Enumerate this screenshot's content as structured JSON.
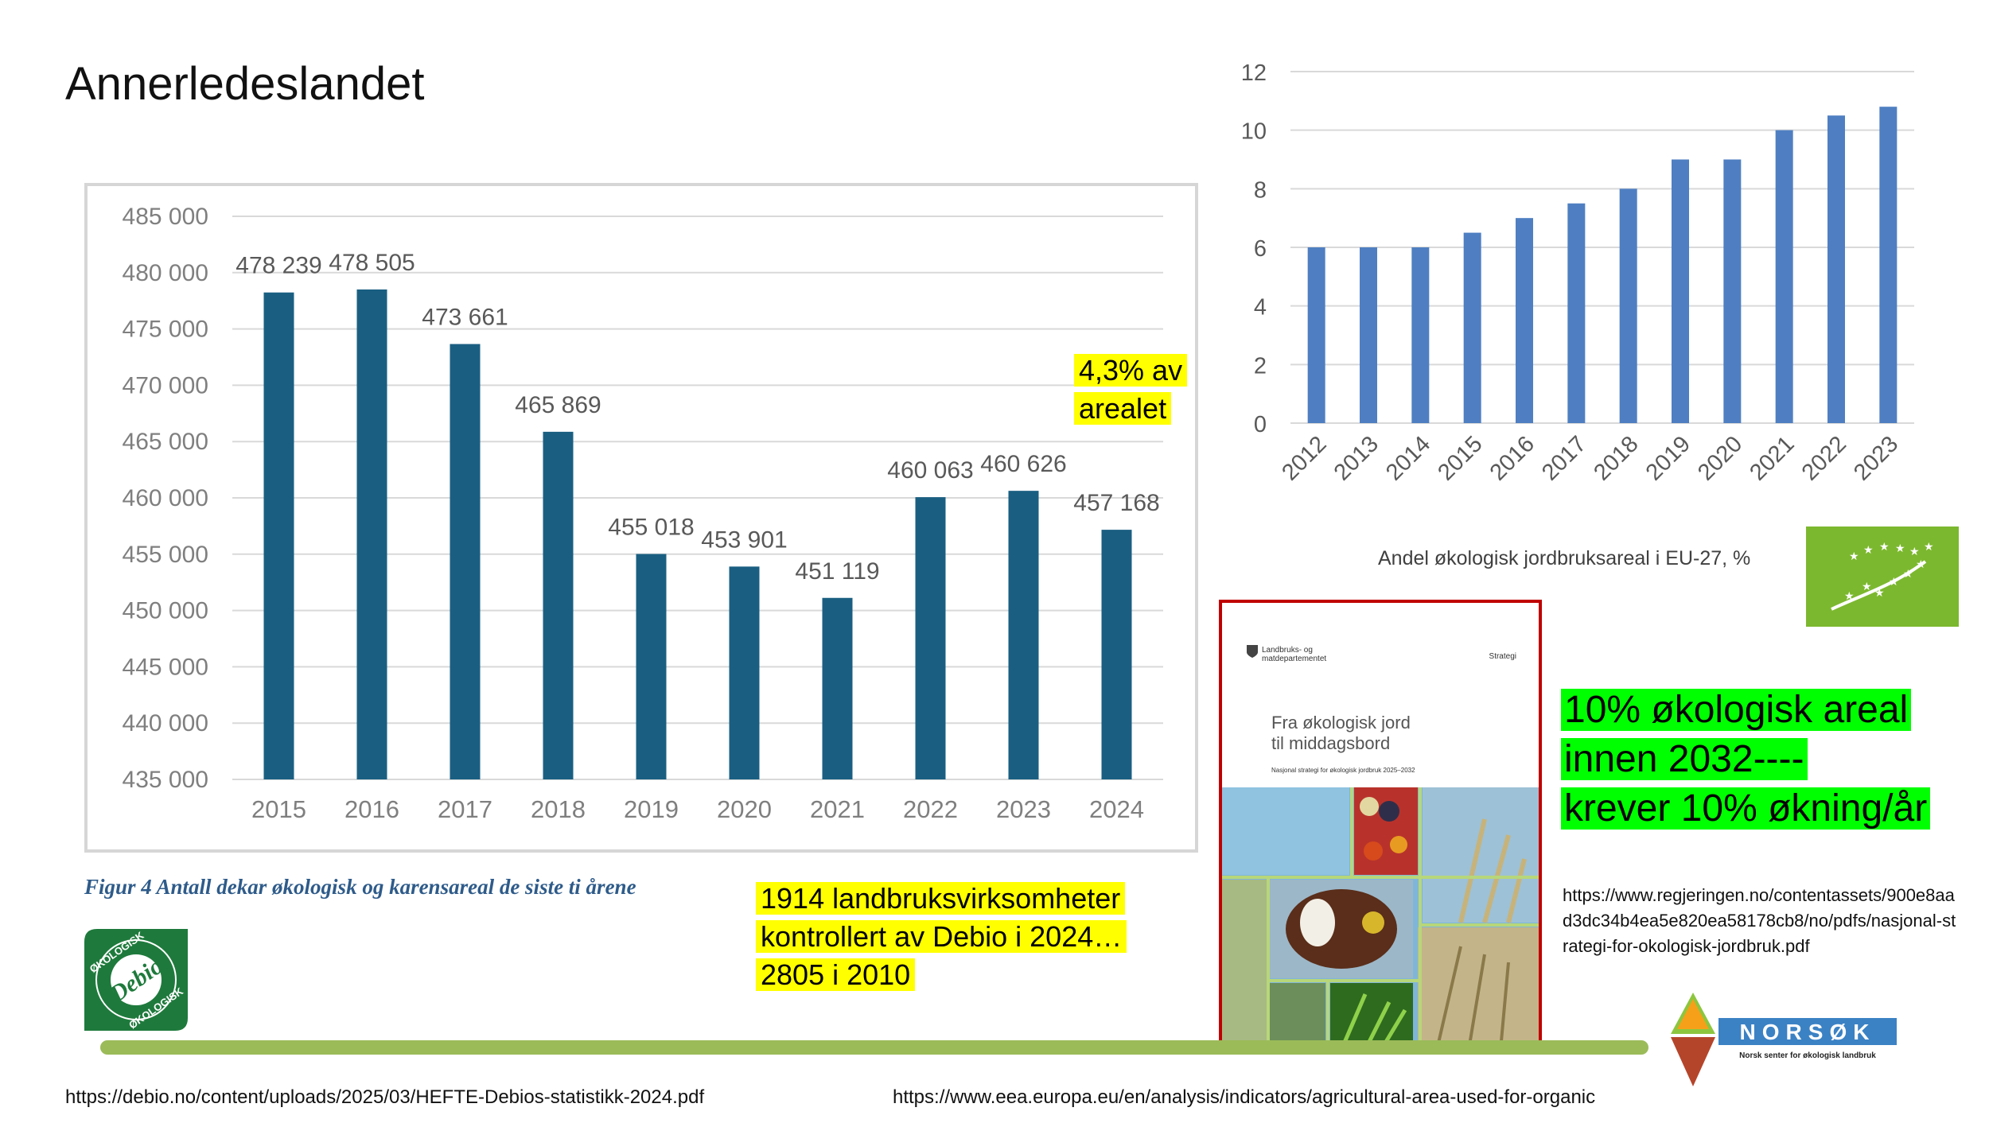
{
  "slide_title": "Annerledeslandet",
  "chart1": {
    "chart_data": {
      "type": "bar",
      "categories": [
        "2015",
        "2016",
        "2017",
        "2018",
        "2019",
        "2020",
        "2021",
        "2022",
        "2023",
        "2024"
      ],
      "values": [
        478239,
        478505,
        473661,
        465869,
        455018,
        453901,
        451119,
        460063,
        460626,
        457168
      ],
      "value_labels": [
        "478 239",
        "478 505",
        "473 661",
        "465 869",
        "455 018",
        "453 901",
        "451 119",
        "460 063",
        "460 626",
        "457 168"
      ],
      "ylim": [
        435000,
        485000
      ],
      "yticks": [
        435000,
        440000,
        445000,
        450000,
        455000,
        460000,
        465000,
        470000,
        475000,
        480000,
        485000
      ],
      "ytick_labels": [
        "435 000",
        "440 000",
        "445 000",
        "450 000",
        "455 000",
        "460 000",
        "465 000",
        "470 000",
        "475 000",
        "480 000",
        "485 000"
      ],
      "grid": true,
      "color": "#1a5f82"
    },
    "caption": "Figur 4 Antall dekar økologisk og karensareal de siste ti årene"
  },
  "chart2": {
    "chart_data": {
      "type": "bar",
      "categories": [
        "2012",
        "2013",
        "2014",
        "2015",
        "2016",
        "2017",
        "2018",
        "2019",
        "2020",
        "2021",
        "2022",
        "2023"
      ],
      "values": [
        6.0,
        6.0,
        6.0,
        6.5,
        7.0,
        7.5,
        8.0,
        9.0,
        9.0,
        10.0,
        10.5,
        10.8
      ],
      "ylim": [
        0,
        12
      ],
      "yticks": [
        0,
        2,
        4,
        6,
        8,
        10,
        12
      ],
      "ytick_labels": [
        "0",
        "2",
        "4",
        "6",
        "8",
        "10",
        "12"
      ],
      "grid": true,
      "color": "#4f7fc2",
      "title": "Andel økologisk jordbruksareal i EU-27, %"
    }
  },
  "notes": {
    "area_share": [
      "4,3% av",
      "arealet"
    ],
    "firms": [
      "1914 landbruksvirksomheter",
      "kontrollert av Debio i 2024…",
      "2805 i 2010"
    ],
    "goal": [
      "10% økologisk areal",
      "innen 2032----",
      "krever 10% økning/år"
    ]
  },
  "document": {
    "ministry": "Landbruks- og matdepartementet",
    "type": "Strategi",
    "title_line1": "Fra økologisk jord",
    "title_line2": "til middagsbord",
    "subtitle": "Nasjonal strategi for økologisk jordbruk 2025–2032",
    "url": "https://www.regjeringen.no/contentassets/900e8aad3dc34b4ea5e820ea58178cb8/no/pdfs/nasjonal-strategi-for-okologisk-jordbruk.pdf"
  },
  "logos": {
    "debio_word": "Debio",
    "debio_ring": "ØKOLOGISK",
    "norsok_word": "NORSØK",
    "norsok_sub": "Norsk senter for økologisk landbruk"
  },
  "sources": {
    "debio": "https://debio.no/content/uploads/2025/03/HEFTE-Debios-statistikk-2024.pdf",
    "eea": "https://www.eea.europa.eu/en/analysis/indicators/agricultural-area-used-for-organic"
  }
}
